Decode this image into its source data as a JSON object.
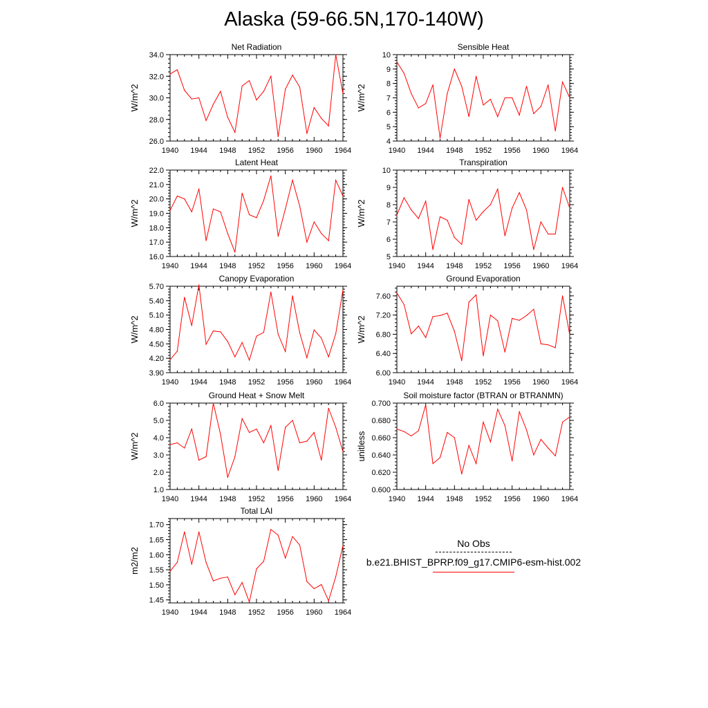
{
  "figure": {
    "title": "Alaska (59-66.5N,170-140W)"
  },
  "legend": {
    "obs_label": "No Obs",
    "model_label": "b.e21.BHIST_BPRP.f09_g17.CMIP6-esm-hist.002",
    "model_color": "#ff0000",
    "obs_line": "dashed-black"
  },
  "chart_data": [
    {
      "type": "line",
      "title": "Net Radiation",
      "xlabel": "",
      "ylabel": "W/m^2",
      "xlim": [
        1940,
        1964
      ],
      "ylim": [
        26.0,
        34.0
      ],
      "xticks": [
        "1940",
        "1944",
        "1948",
        "1952",
        "1956",
        "1960",
        "1964"
      ],
      "yticks": [
        "26.0",
        "28.0",
        "30.0",
        "32.0",
        "34.0"
      ],
      "x": [
        1940,
        1941,
        1942,
        1943,
        1944,
        1945,
        1946,
        1947,
        1948,
        1949,
        1950,
        1951,
        1952,
        1953,
        1954,
        1955,
        1956,
        1957,
        1958,
        1959,
        1960,
        1961,
        1962,
        1963,
        1964
      ],
      "values": [
        32.2,
        32.6,
        30.7,
        29.9,
        30.0,
        27.9,
        29.4,
        30.6,
        28.2,
        26.8,
        31.1,
        31.6,
        29.8,
        30.6,
        32.0,
        26.4,
        30.8,
        32.1,
        31.0,
        26.7,
        29.1,
        28.1,
        27.4,
        34.0,
        30.4
      ],
      "series_color": "#ff0000"
    },
    {
      "type": "line",
      "title": "Sensible Heat",
      "xlabel": "",
      "ylabel": "W/m^2",
      "xlim": [
        1940,
        1964
      ],
      "ylim": [
        4,
        10
      ],
      "xticks": [
        "1940",
        "1944",
        "1948",
        "1952",
        "1956",
        "1960",
        "1964"
      ],
      "yticks": [
        "4",
        "5",
        "6",
        "7",
        "8",
        "9",
        "10"
      ],
      "x": [
        1940,
        1941,
        1942,
        1943,
        1944,
        1945,
        1946,
        1947,
        1948,
        1949,
        1950,
        1951,
        1952,
        1953,
        1954,
        1955,
        1956,
        1957,
        1958,
        1959,
        1960,
        1961,
        1962,
        1963,
        1964
      ],
      "values": [
        9.5,
        8.7,
        7.3,
        6.3,
        6.6,
        7.9,
        4.2,
        7.3,
        9.0,
        7.8,
        5.7,
        8.5,
        6.5,
        6.9,
        5.7,
        7.0,
        7.0,
        5.8,
        7.8,
        5.9,
        6.4,
        7.9,
        4.7,
        8.1,
        7.0
      ],
      "series_color": "#ff0000"
    },
    {
      "type": "line",
      "title": "Latent Heat",
      "xlabel": "",
      "ylabel": "W/m^2",
      "xlim": [
        1940,
        1964
      ],
      "ylim": [
        16.0,
        22.0
      ],
      "xticks": [
        "1940",
        "1944",
        "1948",
        "1952",
        "1956",
        "1960",
        "1964"
      ],
      "yticks": [
        "16.0",
        "17.0",
        "18.0",
        "19.0",
        "20.0",
        "21.0",
        "22.0"
      ],
      "x": [
        1940,
        1941,
        1942,
        1943,
        1944,
        1945,
        1946,
        1947,
        1948,
        1949,
        1950,
        1951,
        1952,
        1953,
        1954,
        1955,
        1956,
        1957,
        1958,
        1959,
        1960,
        1961,
        1962,
        1963,
        1964
      ],
      "values": [
        19.2,
        20.2,
        20.0,
        19.1,
        20.7,
        17.1,
        19.3,
        19.1,
        17.6,
        16.3,
        20.4,
        18.9,
        18.7,
        19.9,
        21.6,
        17.4,
        19.3,
        21.3,
        19.5,
        17.0,
        18.4,
        17.6,
        17.1,
        21.3,
        20.2
      ],
      "series_color": "#ff0000"
    },
    {
      "type": "line",
      "title": "Transpiration",
      "xlabel": "",
      "ylabel": "W/m^2",
      "xlim": [
        1940,
        1964
      ],
      "ylim": [
        5,
        10
      ],
      "xticks": [
        "1940",
        "1944",
        "1948",
        "1952",
        "1956",
        "1960",
        "1964"
      ],
      "yticks": [
        "5",
        "6",
        "7",
        "8",
        "9",
        "10"
      ],
      "x": [
        1940,
        1941,
        1942,
        1943,
        1944,
        1945,
        1946,
        1947,
        1948,
        1949,
        1950,
        1951,
        1952,
        1953,
        1954,
        1955,
        1956,
        1957,
        1958,
        1959,
        1960,
        1961,
        1962,
        1963,
        1964
      ],
      "values": [
        7.4,
        8.4,
        7.7,
        7.2,
        8.2,
        5.4,
        7.3,
        7.1,
        6.1,
        5.7,
        8.3,
        7.1,
        7.6,
        8.0,
        8.9,
        6.2,
        7.8,
        8.7,
        7.7,
        5.4,
        7.0,
        6.3,
        6.3,
        9.0,
        7.8
      ],
      "series_color": "#ff0000"
    },
    {
      "type": "line",
      "title": "Canopy Evaporation",
      "xlabel": "",
      "ylabel": "W/m^2",
      "xlim": [
        1940,
        1964
      ],
      "ylim": [
        3.9,
        5.7
      ],
      "xticks": [
        "1940",
        "1944",
        "1948",
        "1952",
        "1956",
        "1960",
        "1964"
      ],
      "yticks": [
        "3.90",
        "4.20",
        "4.50",
        "4.80",
        "5.10",
        "5.40",
        "5.70"
      ],
      "x": [
        1940,
        1941,
        1942,
        1943,
        1944,
        1945,
        1946,
        1947,
        1948,
        1949,
        1950,
        1951,
        1952,
        1953,
        1954,
        1955,
        1956,
        1957,
        1958,
        1959,
        1960,
        1961,
        1962,
        1963,
        1964
      ],
      "values": [
        4.17,
        4.35,
        5.47,
        4.88,
        5.73,
        4.49,
        4.77,
        4.75,
        4.55,
        4.23,
        4.53,
        4.16,
        4.66,
        4.74,
        5.58,
        4.7,
        4.34,
        5.5,
        4.73,
        4.21,
        4.79,
        4.62,
        4.23,
        4.71,
        5.62
      ],
      "series_color": "#ff0000"
    },
    {
      "type": "line",
      "title": "Ground Evaporation",
      "xlabel": "",
      "ylabel": "W/m^2",
      "xlim": [
        1940,
        1964
      ],
      "ylim": [
        6.0,
        7.8
      ],
      "xticks": [
        "1940",
        "1944",
        "1948",
        "1952",
        "1956",
        "1960",
        "1964"
      ],
      "yticks": [
        "6.00",
        "6.40",
        "6.80",
        "7.20",
        "7.60"
      ],
      "x": [
        1940,
        1941,
        1942,
        1943,
        1944,
        1945,
        1946,
        1947,
        1948,
        1949,
        1950,
        1951,
        1952,
        1953,
        1954,
        1955,
        1956,
        1957,
        1958,
        1959,
        1960,
        1961,
        1962,
        1963,
        1964
      ],
      "values": [
        7.66,
        7.42,
        6.81,
        6.97,
        6.73,
        7.17,
        7.19,
        7.24,
        6.86,
        6.25,
        7.47,
        7.62,
        6.35,
        7.2,
        7.08,
        6.43,
        7.13,
        7.09,
        7.19,
        7.32,
        6.6,
        6.58,
        6.52,
        7.6,
        6.79
      ],
      "series_color": "#ff0000"
    },
    {
      "type": "line",
      "title": "Ground Heat + Snow Melt",
      "xlabel": "",
      "ylabel": "W/m^2",
      "xlim": [
        1940,
        1964
      ],
      "ylim": [
        1.0,
        6.0
      ],
      "xticks": [
        "1940",
        "1944",
        "1948",
        "1952",
        "1956",
        "1960",
        "1964"
      ],
      "yticks": [
        "1.0",
        "2.0",
        "3.0",
        "4.0",
        "5.0",
        "6.0"
      ],
      "x": [
        1940,
        1941,
        1942,
        1943,
        1944,
        1945,
        1946,
        1947,
        1948,
        1949,
        1950,
        1951,
        1952,
        1953,
        1954,
        1955,
        1956,
        1957,
        1958,
        1959,
        1960,
        1961,
        1962,
        1963,
        1964
      ],
      "values": [
        3.6,
        3.7,
        3.4,
        4.5,
        2.7,
        2.9,
        6.0,
        4.2,
        1.7,
        2.9,
        5.1,
        4.3,
        4.5,
        3.7,
        4.7,
        2.1,
        4.6,
        5.0,
        3.7,
        3.8,
        4.3,
        2.7,
        5.7,
        4.6,
        3.2
      ],
      "series_color": "#ff0000"
    },
    {
      "type": "line",
      "title": "Soil moisture factor (BTRAN or BTRANMN)",
      "xlabel": "",
      "ylabel": "unitless",
      "xlim": [
        1940,
        1964
      ],
      "ylim": [
        0.6,
        0.7
      ],
      "xticks": [
        "1940",
        "1944",
        "1948",
        "1952",
        "1956",
        "1960",
        "1964"
      ],
      "yticks": [
        "0.600",
        "0.620",
        "0.640",
        "0.660",
        "0.680",
        "0.700"
      ],
      "x": [
        1940,
        1941,
        1942,
        1943,
        1944,
        1945,
        1946,
        1947,
        1948,
        1949,
        1950,
        1951,
        1952,
        1953,
        1954,
        1955,
        1956,
        1957,
        1958,
        1959,
        1960,
        1961,
        1962,
        1963,
        1964
      ],
      "values": [
        0.67,
        0.667,
        0.662,
        0.668,
        0.698,
        0.63,
        0.637,
        0.666,
        0.66,
        0.618,
        0.651,
        0.63,
        0.678,
        0.655,
        0.693,
        0.674,
        0.633,
        0.69,
        0.669,
        0.64,
        0.658,
        0.648,
        0.639,
        0.678,
        0.684
      ],
      "series_color": "#ff0000"
    },
    {
      "type": "line",
      "title": "Total LAI",
      "xlabel": "",
      "ylabel": "m2/m2",
      "xlim": [
        1940,
        1964
      ],
      "ylim": [
        1.44,
        1.72
      ],
      "xticks": [
        "1940",
        "1944",
        "1948",
        "1952",
        "1956",
        "1960",
        "1964"
      ],
      "yticks": [
        "1.45",
        "1.50",
        "1.55",
        "1.60",
        "1.65",
        "1.70"
      ],
      "x": [
        1940,
        1941,
        1942,
        1943,
        1944,
        1945,
        1946,
        1947,
        1948,
        1949,
        1950,
        1951,
        1952,
        1953,
        1954,
        1955,
        1956,
        1957,
        1958,
        1959,
        1960,
        1961,
        1962,
        1963,
        1964
      ],
      "values": [
        1.545,
        1.575,
        1.676,
        1.568,
        1.676,
        1.574,
        1.513,
        1.522,
        1.526,
        1.467,
        1.508,
        1.443,
        1.553,
        1.578,
        1.684,
        1.665,
        1.589,
        1.66,
        1.632,
        1.511,
        1.487,
        1.501,
        1.447,
        1.527,
        1.63
      ],
      "series_color": "#ff0000"
    }
  ]
}
